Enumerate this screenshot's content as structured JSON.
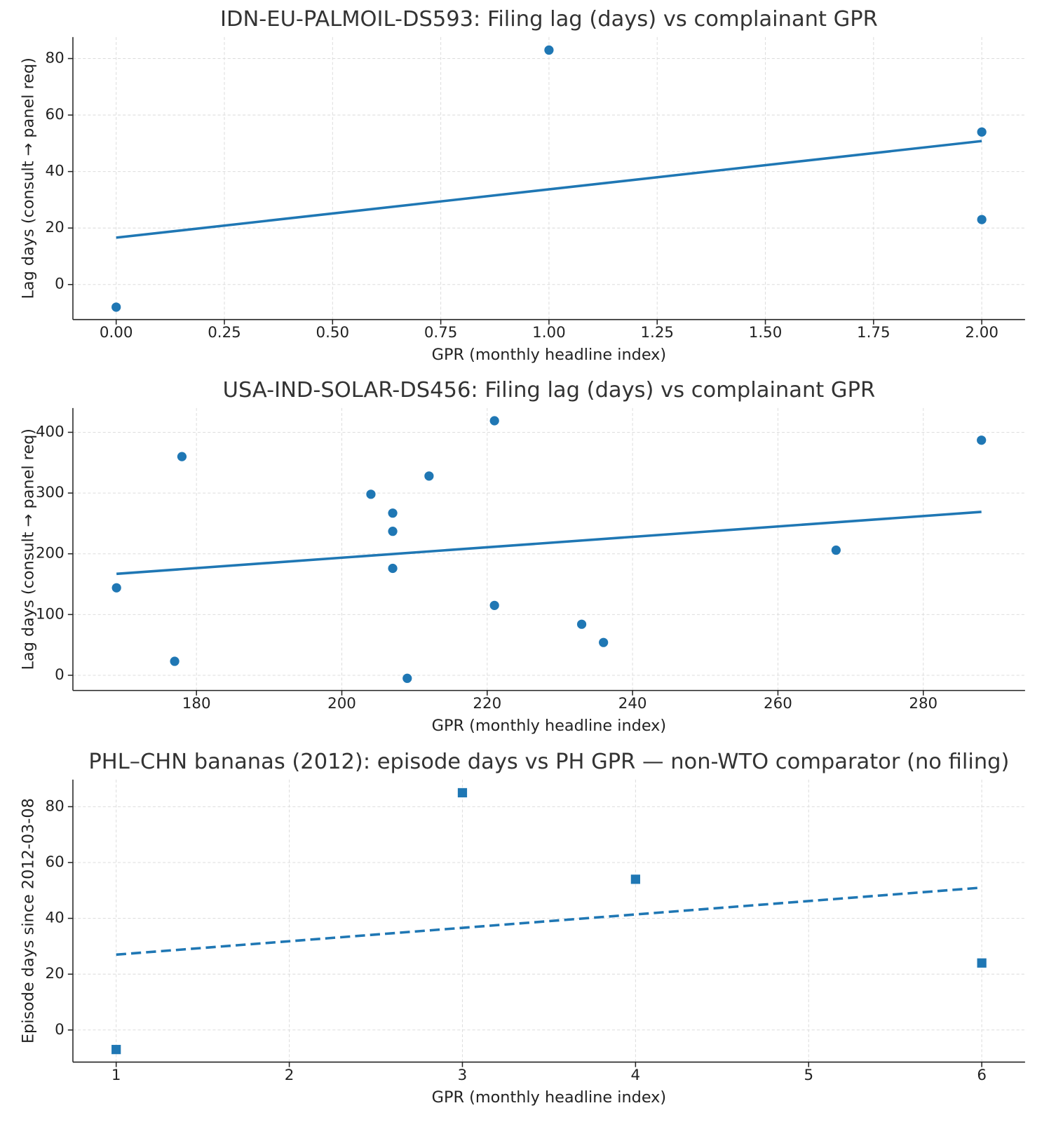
{
  "chart_data": [
    {
      "type": "scatter",
      "title": "IDN-EU-PALMOIL-DS593: Filing lag (days) vs complainant GPR",
      "xlabel": "GPR (monthly headline index)",
      "ylabel": "Lag days (consult → panel req)",
      "x": [
        0,
        1,
        2,
        2
      ],
      "y": [
        -8,
        83,
        54,
        23
      ],
      "color": "#1f77b4",
      "marker": "circle",
      "fit": {
        "x": [
          0,
          2
        ],
        "y": [
          16.6,
          50.8
        ],
        "dash": false
      },
      "xlim": [
        -0.1,
        2.1
      ],
      "ylim": [
        -12.4,
        87.6
      ],
      "xticks": [
        {
          "value": 0,
          "label": "0.00"
        },
        {
          "value": 0.25,
          "label": "0.25"
        },
        {
          "value": 0.5,
          "label": "0.50"
        },
        {
          "value": 0.75,
          "label": "0.75"
        },
        {
          "value": 1,
          "label": "1.00"
        },
        {
          "value": 1.25,
          "label": "1.25"
        },
        {
          "value": 1.5,
          "label": "1.50"
        },
        {
          "value": 1.75,
          "label": "1.75"
        },
        {
          "value": 2,
          "label": "2.00"
        }
      ],
      "yticks": [
        0,
        20,
        40,
        60,
        80
      ],
      "grid": true
    },
    {
      "type": "scatter",
      "title": "USA-IND-SOLAR-DS456: Filing lag (days) vs complainant GPR",
      "xlabel": "GPR (monthly headline index)",
      "ylabel": "Lag days (consult → panel req)",
      "x": [
        169,
        177,
        178,
        204,
        207,
        207,
        207,
        209,
        212,
        221,
        221,
        233,
        236,
        268,
        288
      ],
      "y": [
        144,
        23,
        360,
        298,
        267,
        237,
        176,
        -5,
        328,
        419,
        115,
        84,
        54,
        206,
        387
      ],
      "color": "#1f77b4",
      "marker": "circle",
      "fit": {
        "x": [
          169,
          288
        ],
        "y": [
          167,
          269
        ],
        "dash": false
      },
      "xlim": [
        163,
        294
      ],
      "ylim": [
        -25,
        440
      ],
      "xticks": [
        180,
        200,
        220,
        240,
        260,
        280
      ],
      "yticks": [
        0,
        100,
        200,
        300,
        400
      ],
      "grid": true
    },
    {
      "type": "scatter",
      "title": "PHL–CHN bananas (2012): episode days vs PH GPR — non-WTO comparator (no filing)",
      "xlabel": "GPR (monthly headline index)",
      "ylabel": "Episode days since 2012-03-08",
      "x": [
        1,
        3,
        4,
        6
      ],
      "y": [
        -7,
        85,
        54,
        24
      ],
      "color": "#1f77b4",
      "marker": "square",
      "fit": {
        "x": [
          1,
          6
        ],
        "y": [
          27,
          51
        ],
        "dash": true
      },
      "xlim": [
        0.75,
        6.25
      ],
      "ylim": [
        -11.5,
        89.7
      ],
      "xticks": [
        1,
        2,
        3,
        4,
        5,
        6
      ],
      "yticks": [
        0,
        20,
        40,
        60,
        80
      ],
      "grid": true
    }
  ]
}
